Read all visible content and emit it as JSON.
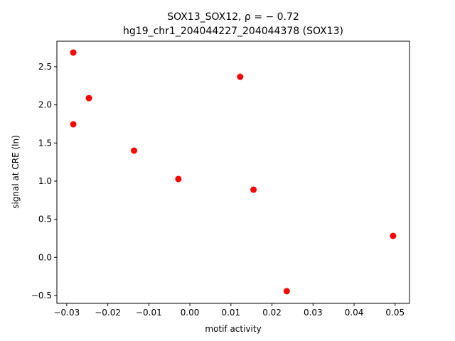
{
  "chart_data": {
    "type": "scatter",
    "title": "SOX13_SOX12, ρ = − 0.72",
    "subtitle": "hg19_chr1_204044227_204044378 (SOX13)",
    "x_label": "motif activity",
    "y_label": "signal at CRE (ln)",
    "color": "#ff0000",
    "x": [
      -0.0284,
      -0.0246,
      -0.0284,
      -0.0136,
      -0.0028,
      0.01225,
      0.0155,
      0.0236,
      0.0495
    ],
    "values": [
      2.686,
      2.089,
      1.745,
      1.4,
      1.028,
      2.369,
      0.888,
      -0.444,
      0.282
    ],
    "xlim": [
      -0.0324,
      0.0535
    ],
    "ylim": [
      -0.603,
      2.835
    ],
    "xticks": [
      {
        "value": -0.03,
        "label": "−0.03"
      },
      {
        "value": -0.02,
        "label": "−0.02"
      },
      {
        "value": -0.01,
        "label": "−0.01"
      },
      {
        "value": 0,
        "label": "0.00"
      },
      {
        "value": 0.01,
        "label": "0.01"
      },
      {
        "value": 0.02,
        "label": "0.02"
      },
      {
        "value": 0.03,
        "label": "0.03"
      },
      {
        "value": 0.04,
        "label": "0.04"
      },
      {
        "value": 0.05,
        "label": "0.05"
      }
    ],
    "yticks": [
      {
        "value": -0.5,
        "label": "−0.5"
      },
      {
        "value": 0,
        "label": "0.0"
      },
      {
        "value": 0.5,
        "label": "0.5"
      },
      {
        "value": 1,
        "label": "1.0"
      },
      {
        "value": 1.5,
        "label": "1.5"
      },
      {
        "value": 2,
        "label": "2.0"
      },
      {
        "value": 2.5,
        "label": "2.5"
      }
    ]
  }
}
